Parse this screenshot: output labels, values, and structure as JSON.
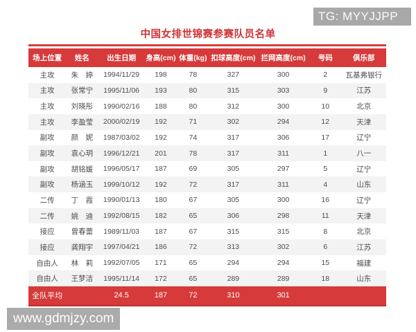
{
  "page": {
    "title": "中国女排世锦赛参赛队员名单"
  },
  "watermarks": {
    "top_right": "TG: MYYJJPP",
    "bottom_left": "www.gdmjzy.com"
  },
  "colors": {
    "accent_red": "#d63a3b",
    "stripe_gray": "#f3f3f3",
    "watermark_gray": "#a8a8a8",
    "body_text": "#4c4c4c",
    "title_red": "#cf3336"
  },
  "table": {
    "columns": [
      "场上位置",
      "姓名",
      "出生日期",
      "身高(cm)",
      "体重(kg)",
      "扣球高度(cm)",
      "拦网高度(cm)",
      "号码",
      "俱乐部"
    ],
    "rows": [
      [
        "主攻",
        "朱　婷",
        "1994/11/29",
        "198",
        "78",
        "327",
        "300",
        "2",
        "瓦基弗银行"
      ],
      [
        "主攻",
        "张常宁",
        "1995/11/06",
        "193",
        "80",
        "315",
        "303",
        "9",
        "江苏"
      ],
      [
        "主攻",
        "刘晓彤",
        "1990/02/16",
        "188",
        "80",
        "312",
        "300",
        "10",
        "北京"
      ],
      [
        "主攻",
        "李盈莹",
        "2000/02/19",
        "192",
        "71",
        "302",
        "294",
        "12",
        "天津"
      ],
      [
        "副攻",
        "颜　妮",
        "1987/03/02",
        "192",
        "74",
        "317",
        "306",
        "17",
        "辽宁"
      ],
      [
        "副攻",
        "袁心玥",
        "1996/12/21",
        "201",
        "78",
        "317",
        "311",
        "1",
        "八一"
      ],
      [
        "副攻",
        "胡铭媛",
        "1996/05/17",
        "187",
        "69",
        "305",
        "297",
        "5",
        "辽宁"
      ],
      [
        "副攻",
        "杨涵玉",
        "1999/10/12",
        "192",
        "72",
        "317",
        "311",
        "4",
        "山东"
      ],
      [
        "二传",
        "丁　霞",
        "1990/01/13",
        "180",
        "67",
        "305",
        "300",
        "16",
        "辽宁"
      ],
      [
        "二传",
        "姚　迪",
        "1992/08/15",
        "182",
        "65",
        "306",
        "298",
        "11",
        "天津"
      ],
      [
        "接应",
        "曾春蕾",
        "1989/11/03",
        "187",
        "67",
        "315",
        "315",
        "8",
        "北京"
      ],
      [
        "接应",
        "龚翔宇",
        "1997/04/21",
        "186",
        "72",
        "313",
        "302",
        "6",
        "江苏"
      ],
      [
        "自由人",
        "林　莉",
        "1992/07/05",
        "171",
        "65",
        "294",
        "294",
        "15",
        "福建"
      ],
      [
        "自由人",
        "王梦洁",
        "1995/11/14",
        "172",
        "65",
        "289",
        "289",
        "18",
        "山东"
      ]
    ],
    "footer": [
      "全队平均",
      "",
      "24.5",
      "187",
      "72",
      "310",
      "301",
      "",
      ""
    ]
  }
}
